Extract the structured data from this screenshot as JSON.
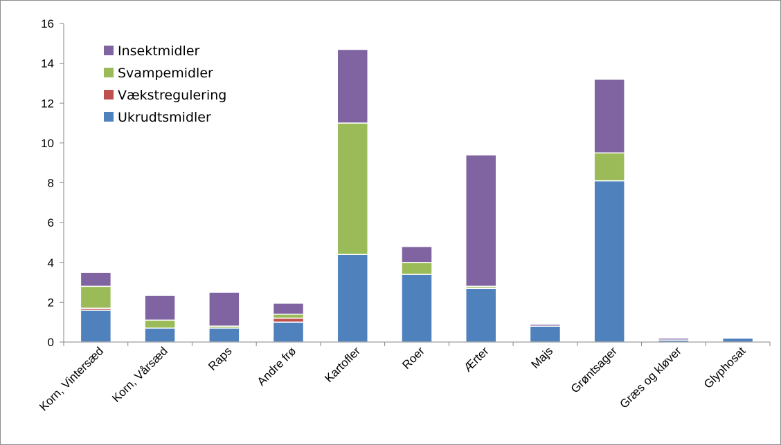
{
  "chart_data": {
    "type": "bar",
    "stacked": true,
    "categories": [
      "Korn, Vintersæd",
      "Korn, Vårsæd",
      "Raps",
      "Andre frø",
      "Kartofler",
      "Roer",
      "Ærter",
      "Majs",
      "Grøntsager",
      "Græs og kløver",
      "Glyphosat"
    ],
    "series": [
      {
        "name": "Ukrudtsmidler",
        "color": "#4f81bd",
        "values": [
          1.6,
          0.7,
          0.7,
          1.0,
          4.4,
          3.4,
          2.7,
          0.8,
          8.1,
          0.1,
          0.2
        ]
      },
      {
        "name": "Vækstregulering",
        "color": "#c0504d",
        "values": [
          0.1,
          0.0,
          0.0,
          0.2,
          0.0,
          0.0,
          0.0,
          0.0,
          0.0,
          0.0,
          0.0
        ]
      },
      {
        "name": "Svampemidler",
        "color": "#9bbb59",
        "values": [
          1.1,
          0.4,
          0.1,
          0.2,
          6.6,
          0.6,
          0.1,
          0.0,
          1.4,
          0.0,
          0.0
        ]
      },
      {
        "name": "Insektmidler",
        "color": "#8064a2",
        "values": [
          0.7,
          1.25,
          1.7,
          0.55,
          3.7,
          0.8,
          6.6,
          0.1,
          3.7,
          0.1,
          0.0
        ]
      }
    ],
    "yticks": [
      "0",
      "2",
      "4",
      "6",
      "8",
      "10",
      "12",
      "14",
      "16"
    ],
    "ylim": [
      0,
      16
    ],
    "grid": false,
    "legend_position": "top-left",
    "legend_order": [
      "Insektmidler",
      "Svampemidler",
      "Vækstregulering",
      "Ukrudtsmidler"
    ]
  }
}
